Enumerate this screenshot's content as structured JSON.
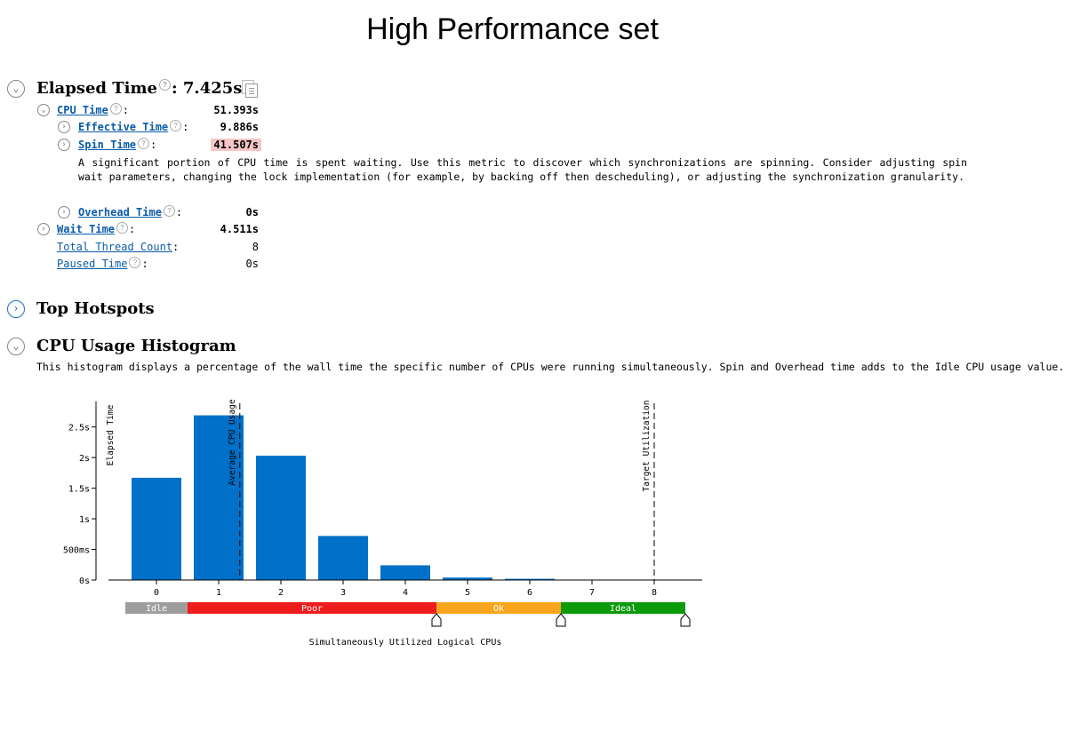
{
  "title": "High Performance set",
  "elapsed": {
    "label": "Elapsed Time",
    "value": "7.425s"
  },
  "cpu_time": {
    "label": "CPU Time",
    "value": "51.393s"
  },
  "effective_time": {
    "label": "Effective Time",
    "value": "9.886s"
  },
  "spin_time": {
    "label": "Spin Time",
    "value": "41.507s",
    "description": "A significant portion of CPU time is spent waiting. Use this metric to discover which synchronizations are spinning. Consider adjusting spin wait parameters, changing the lock implementation (for example, by backing off then descheduling), or adjusting the synchronization granularity."
  },
  "overhead_time": {
    "label": "Overhead Time",
    "value": "0s"
  },
  "wait_time": {
    "label": "Wait Time",
    "value": "4.511s"
  },
  "thread_count": {
    "label": "Total Thread Count",
    "value": "8"
  },
  "paused_time": {
    "label": "Paused Time",
    "value": "0s"
  },
  "top_hotspots": {
    "label": "Top Hotspots"
  },
  "histogram": {
    "label": "CPU Usage Histogram",
    "description": "This histogram displays a percentage of the wall time the specific number of CPUs were running simultaneously. Spin and Overhead time adds to the Idle CPU usage value."
  },
  "chart_data": {
    "type": "bar",
    "categories": [
      "0",
      "1",
      "2",
      "3",
      "4",
      "5",
      "6",
      "7",
      "8"
    ],
    "values": [
      1.67,
      2.69,
      2.03,
      0.72,
      0.24,
      0.04,
      0.02,
      0,
      0
    ],
    "ylabel": "Elapsed Time",
    "xlabel": "Simultaneously Utilized Logical CPUs",
    "ylim": [
      0,
      2.8
    ],
    "yticks": [
      {
        "v": 0,
        "label": "0s"
      },
      {
        "v": 0.5,
        "label": "500ms"
      },
      {
        "v": 1,
        "label": "1s"
      },
      {
        "v": 1.5,
        "label": "1.5s"
      },
      {
        "v": 2,
        "label": "2s"
      },
      {
        "v": 2.5,
        "label": "2.5s"
      }
    ],
    "bar_color": "#0070c8",
    "markers": [
      {
        "label": "Average CPU Usage",
        "x": 1.34
      },
      {
        "label": "Target Utilization",
        "x": 8
      }
    ],
    "ranges": [
      {
        "label": "Idle",
        "from": -0.5,
        "to": 0.5,
        "color": "#9e9e9e"
      },
      {
        "label": "Poor",
        "from": 0.5,
        "to": 4.5,
        "color": "#ee1c1c"
      },
      {
        "label": "Ok",
        "from": 4.5,
        "to": 6.5,
        "color": "#f7a51c"
      },
      {
        "label": "Ideal",
        "from": 6.5,
        "to": 8.5,
        "color": "#0a9a0a"
      }
    ],
    "sliders": [
      4.5,
      6.5,
      8.5
    ]
  }
}
